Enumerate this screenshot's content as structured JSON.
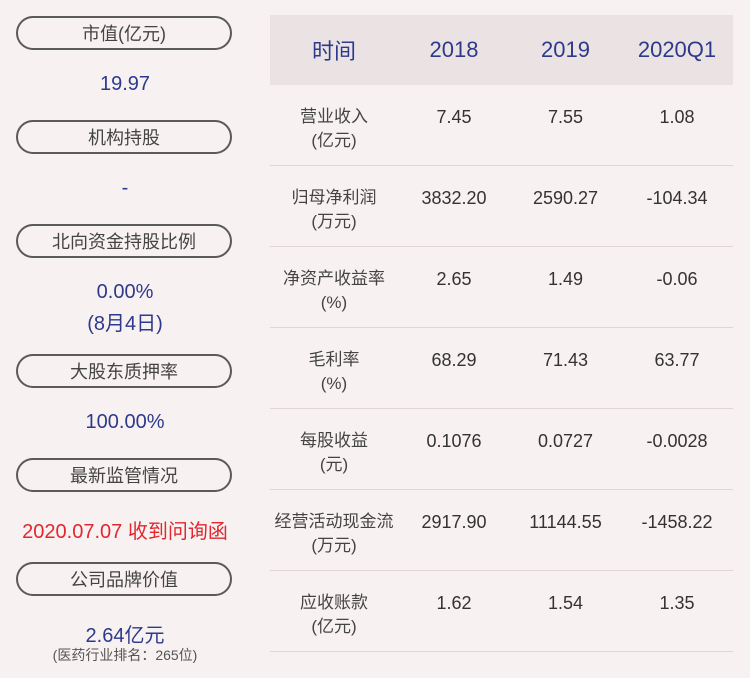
{
  "left": {
    "items": [
      {
        "label": "市值(亿元)",
        "value": "19.97"
      },
      {
        "label": "机构持股",
        "value": "-"
      },
      {
        "label": "北向资金持股比例",
        "value": "0.00%",
        "value2": "(8月4日)"
      },
      {
        "label": "大股东质押率",
        "value": "100.00%"
      },
      {
        "label": "最新监管情况",
        "value": "2020.07.07 收到问询函"
      },
      {
        "label": "公司品牌价值",
        "value": "2.64亿元",
        "note": "(医药行业排名：265位)"
      }
    ]
  },
  "table": {
    "headers": [
      "时间",
      "2018",
      "2019",
      "2020Q1"
    ],
    "rows": [
      {
        "name": "营业收入",
        "unit": "(亿元)",
        "values": [
          "7.45",
          "7.55",
          "1.08"
        ]
      },
      {
        "name": "归母净利润",
        "unit": "(万元)",
        "values": [
          "3832.20",
          "2590.27",
          "-104.34"
        ]
      },
      {
        "name": "净资产收益率",
        "unit": "(%)",
        "values": [
          "2.65",
          "1.49",
          "-0.06"
        ]
      },
      {
        "name": "毛利率",
        "unit": "(%)",
        "values": [
          "68.29",
          "71.43",
          "63.77"
        ]
      },
      {
        "name": "每股收益",
        "unit": "(元)",
        "values": [
          "0.1076",
          "0.0727",
          "-0.0028"
        ]
      },
      {
        "name": "经营活动现金流",
        "unit": "(万元)",
        "values": [
          "2917.90",
          "11144.55",
          "-1458.22"
        ]
      },
      {
        "name": "应收账款",
        "unit": "(亿元)",
        "values": [
          "1.62",
          "1.54",
          "1.35"
        ]
      }
    ]
  },
  "colors": {
    "value_blue": "#2d3a8c",
    "alert_red": "#e0282e",
    "background": "#f8f1f1"
  }
}
